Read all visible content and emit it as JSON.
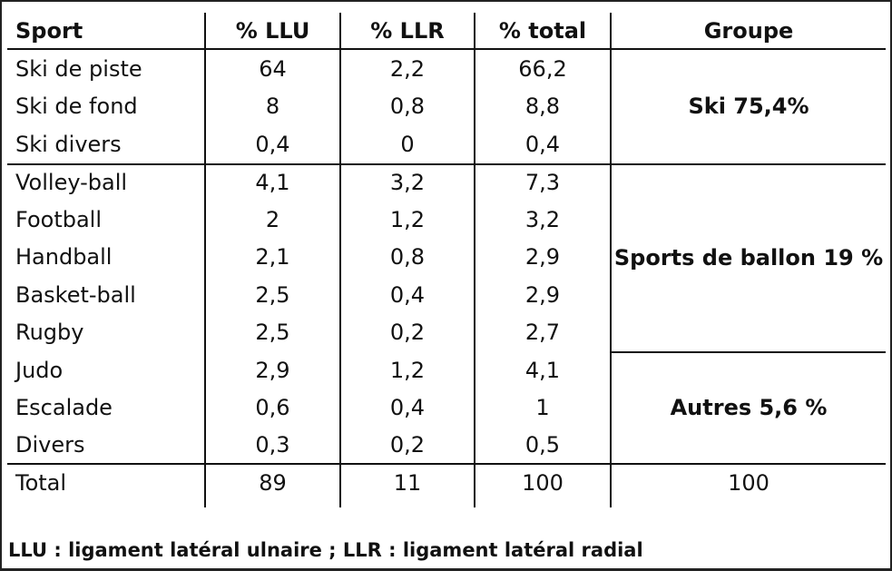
{
  "table": {
    "headers": [
      "Sport",
      "% LLU",
      "% LLR",
      "% total",
      "Groupe"
    ],
    "rows": [
      [
        "Ski de piste",
        "64",
        "2,2",
        "66,2"
      ],
      [
        "Ski de fond",
        "8",
        "0,8",
        "8,8"
      ],
      [
        "Ski divers",
        "0,4",
        "0",
        "0,4"
      ],
      [
        "Volley-ball",
        "4,1",
        "3,2",
        "7,3"
      ],
      [
        "Football",
        "2",
        "1,2",
        "3,2"
      ],
      [
        "Handball",
        "2,1",
        "0,8",
        "2,9"
      ],
      [
        "Basket-ball",
        "2,5",
        "0,4",
        "2,9"
      ],
      [
        "Rugby",
        "2,5",
        "0,2",
        "2,7"
      ],
      [
        "Judo",
        "2,9",
        "1,2",
        "4,1"
      ],
      [
        "Escalade",
        "0,6",
        "0,4",
        "1"
      ],
      [
        "Divers",
        "0,3",
        "0,2",
        "0,5"
      ]
    ],
    "groups": [
      "Ski 75,4%",
      "Sports de ballon 19 %",
      "Autres 5,6 %"
    ],
    "total": [
      "Total",
      "89",
      "11",
      "100",
      "100"
    ]
  },
  "footnote": "LLU : ligament latéral ulnaire ; LLR : ligament latéral radial"
}
